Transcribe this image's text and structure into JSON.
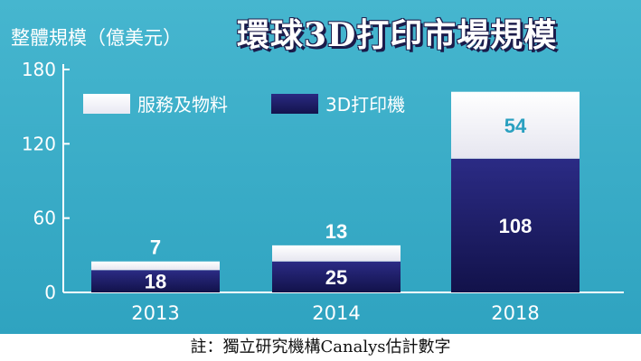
{
  "header": {
    "ylabel": "整體規模（億美元）",
    "title": "環球3D打印市場規模"
  },
  "footer": {
    "note": "註：獨立研究機構Canalys估計數字"
  },
  "colors": {
    "background": "#3aaec9",
    "printers": "#1c1c63",
    "services": "#ffffff",
    "label_on_white": "#2aa0c0",
    "label_on_navy": "#ffffff"
  },
  "chart_data": {
    "type": "bar",
    "stacked": true,
    "categories": [
      "2013",
      "2014",
      "2018"
    ],
    "series": [
      {
        "name": "3D打印機",
        "values": [
          18,
          25,
          108
        ]
      },
      {
        "name": "服務及物料",
        "values": [
          7,
          13,
          54
        ]
      }
    ],
    "yticks": [
      "0",
      "60",
      "120",
      "180"
    ],
    "ylim": [
      0,
      180
    ],
    "ylabel": "整體規模（億美元）",
    "xlabel": "",
    "title": "環球3D打印市場規模",
    "grid": false,
    "legend": "top-left"
  }
}
